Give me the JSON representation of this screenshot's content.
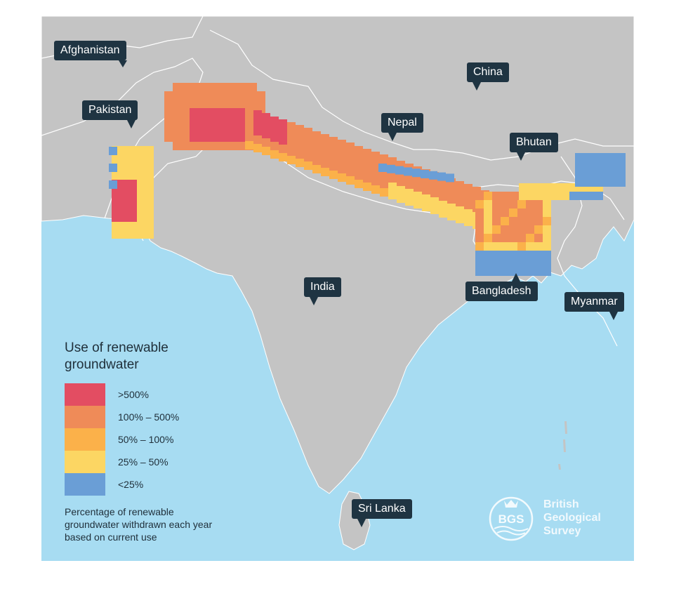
{
  "country_labels": {
    "afghanistan": "Afghanistan",
    "pakistan": "Pakistan",
    "china": "China",
    "nepal": "Nepal",
    "bhutan": "Bhutan",
    "india": "India",
    "bangladesh": "Bangladesh",
    "myanmar": "Myanmar",
    "sri_lanka": "Sri Lanka"
  },
  "legend": {
    "title": "Use of renewable groundwater",
    "classes": [
      {
        "label": ">500%",
        "color": "#e34d62"
      },
      {
        "label": "100% – 500%",
        "color": "#ef8b58"
      },
      {
        "label": "50% – 100%",
        "color": "#fbb14a"
      },
      {
        "label": "25% – 50%",
        "color": "#fcd663"
      },
      {
        "label": "<25%",
        "color": "#6a9ed6"
      }
    ],
    "note": "Percentage of renewable groundwater withdrawn each year based on current use"
  },
  "logo": {
    "emblem_text": "BGS",
    "name_line1": "British",
    "name_line2": "Geological",
    "name_line3": "Survey"
  },
  "colors": {
    "sea": "#a7dcf2",
    "land": "#c4c4c4",
    "border": "#ffffff",
    "label_bg": "#1f3442",
    "legend_text": "#1f2f3a"
  }
}
